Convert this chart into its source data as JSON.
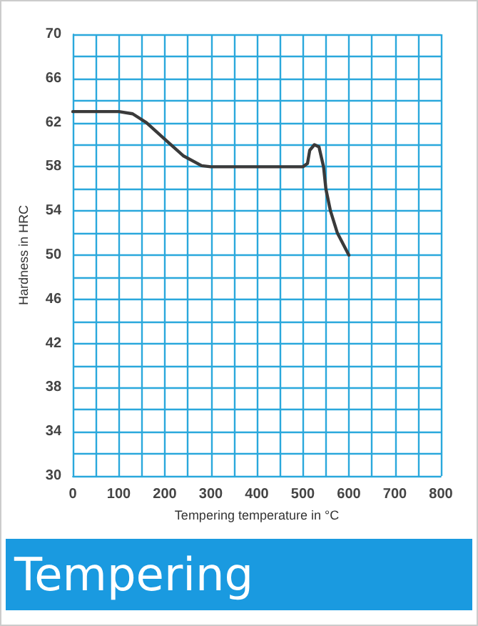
{
  "chart_data": {
    "type": "line",
    "title": "Tempering",
    "xlabel": "Tempering temperature in °C",
    "ylabel": "Hardness in HRC",
    "x": [
      0,
      100,
      130,
      160,
      200,
      240,
      280,
      300,
      400,
      500,
      510,
      515,
      525,
      535,
      545,
      550,
      560,
      575,
      600
    ],
    "series": [
      {
        "color": "#3a3a3a",
        "values": [
          63,
          63,
          62.8,
          62,
          60.5,
          59,
          58.1,
          58,
          58,
          58,
          58.3,
          59.5,
          60,
          59.8,
          58,
          56,
          54,
          52,
          50
        ]
      }
    ],
    "xlim": [
      0,
      800
    ],
    "xticks": [
      0,
      100,
      200,
      300,
      400,
      500,
      600,
      700,
      800
    ],
    "ylim": [
      30,
      70
    ],
    "yticks": [
      30,
      34,
      38,
      42,
      46,
      50,
      54,
      58,
      62,
      66,
      70
    ],
    "grid": true,
    "marker": "none",
    "line_style": "solid"
  }
}
